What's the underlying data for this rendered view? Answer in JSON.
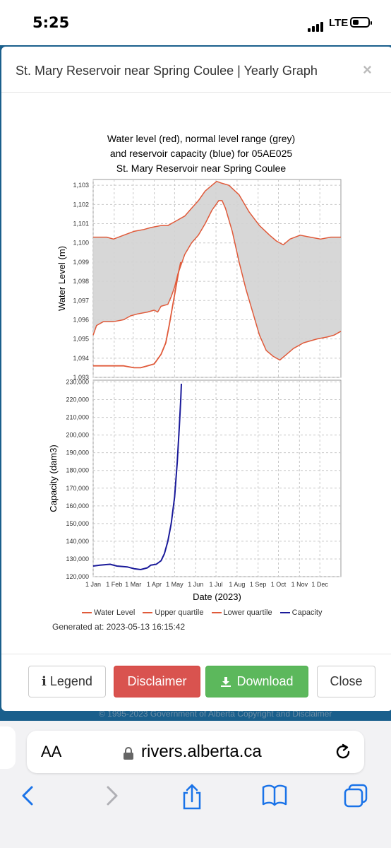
{
  "status_bar": {
    "time": "5:25",
    "network": "LTE"
  },
  "modal": {
    "title": "St. Mary Reservoir near Spring Coulee | Yearly Graph",
    "close_glyph": "×",
    "buttons": {
      "legend": "Legend",
      "disclaimer": "Disclaimer",
      "download": "Download",
      "close": "Close"
    }
  },
  "chart_data": {
    "type": "line",
    "title_lines": [
      "Water level (red), normal level range (grey)",
      "and reservoir capacity (blue) for 05AE025",
      "St. Mary Reservoir near Spring Coulee"
    ],
    "xlabel": "Date (2023)",
    "x_ticks": [
      "1 Jan",
      "1 Feb",
      "1 Mar",
      "1 Apr",
      "1 May",
      "1 Jun",
      "1 Jul",
      "1 Aug",
      "1 Sep",
      "1 Oct",
      "1 Nov",
      "1 Dec"
    ],
    "x_range_days": [
      0,
      365
    ],
    "top_panel": {
      "ylabel": "Water Level (m)",
      "ylim": [
        1093,
        1103.3
      ],
      "y_ticks": [
        "1,093",
        "1,094",
        "1,095",
        "1,096",
        "1,097",
        "1,098",
        "1,099",
        "1,100",
        "1,101",
        "1,102",
        "1,103"
      ],
      "upper_quartile": {
        "name": "Upper quartile",
        "points": [
          [
            0,
            1100.3
          ],
          [
            20,
            1100.3
          ],
          [
            30,
            1100.2
          ],
          [
            45,
            1100.4
          ],
          [
            60,
            1100.6
          ],
          [
            75,
            1100.7
          ],
          [
            85,
            1100.8
          ],
          [
            100,
            1100.9
          ],
          [
            110,
            1100.9
          ],
          [
            125,
            1101.2
          ],
          [
            135,
            1101.4
          ],
          [
            145,
            1101.8
          ],
          [
            155,
            1102.2
          ],
          [
            165,
            1102.7
          ],
          [
            175,
            1103.0
          ],
          [
            182,
            1103.2
          ],
          [
            190,
            1103.1
          ],
          [
            200,
            1103.0
          ],
          [
            215,
            1102.5
          ],
          [
            230,
            1101.6
          ],
          [
            245,
            1100.9
          ],
          [
            260,
            1100.4
          ],
          [
            270,
            1100.1
          ],
          [
            280,
            1099.9
          ],
          [
            290,
            1100.2
          ],
          [
            305,
            1100.4
          ],
          [
            320,
            1100.3
          ],
          [
            335,
            1100.2
          ],
          [
            350,
            1100.3
          ],
          [
            365,
            1100.3
          ]
        ]
      },
      "lower_quartile": {
        "name": "Lower quartile",
        "points": [
          [
            0,
            1095.2
          ],
          [
            5,
            1095.7
          ],
          [
            15,
            1095.9
          ],
          [
            30,
            1095.9
          ],
          [
            45,
            1096.0
          ],
          [
            55,
            1096.2
          ],
          [
            65,
            1096.3
          ],
          [
            80,
            1096.4
          ],
          [
            90,
            1096.5
          ],
          [
            95,
            1096.4
          ],
          [
            100,
            1096.7
          ],
          [
            110,
            1096.8
          ],
          [
            115,
            1097.2
          ],
          [
            120,
            1097.7
          ],
          [
            125,
            1098.4
          ],
          [
            135,
            1099.4
          ],
          [
            145,
            1100.0
          ],
          [
            155,
            1100.4
          ],
          [
            165,
            1101.0
          ],
          [
            175,
            1101.7
          ],
          [
            185,
            1102.2
          ],
          [
            190,
            1102.2
          ],
          [
            195,
            1101.8
          ],
          [
            205,
            1100.6
          ],
          [
            215,
            1099.0
          ],
          [
            225,
            1097.6
          ],
          [
            235,
            1096.4
          ],
          [
            245,
            1095.2
          ],
          [
            255,
            1094.4
          ],
          [
            265,
            1094.1
          ],
          [
            275,
            1093.9
          ],
          [
            285,
            1094.2
          ],
          [
            295,
            1094.5
          ],
          [
            310,
            1094.8
          ],
          [
            330,
            1095.0
          ],
          [
            345,
            1095.1
          ],
          [
            355,
            1095.2
          ],
          [
            365,
            1095.4
          ]
        ]
      },
      "water_level": {
        "name": "Water Level",
        "points": [
          [
            0,
            1093.6
          ],
          [
            15,
            1093.6
          ],
          [
            30,
            1093.6
          ],
          [
            45,
            1093.6
          ],
          [
            60,
            1093.5
          ],
          [
            70,
            1093.5
          ],
          [
            80,
            1093.6
          ],
          [
            90,
            1093.7
          ],
          [
            100,
            1094.2
          ],
          [
            107,
            1094.8
          ],
          [
            112,
            1095.7
          ],
          [
            117,
            1096.7
          ],
          [
            122,
            1097.7
          ],
          [
            126,
            1098.5
          ],
          [
            129,
            1099.0
          ]
        ]
      }
    },
    "bottom_panel": {
      "ylabel": "Capacity (dam3)",
      "ylim": [
        120000,
        231000
      ],
      "y_ticks": [
        "120,000",
        "130,000",
        "140,000",
        "150,000",
        "160,000",
        "170,000",
        "180,000",
        "190,000",
        "200,000",
        "210,000",
        "220,000",
        "230,000"
      ],
      "capacity": {
        "name": "Capacity",
        "points": [
          [
            0,
            126000
          ],
          [
            10,
            126500
          ],
          [
            25,
            127000
          ],
          [
            35,
            126000
          ],
          [
            50,
            125500
          ],
          [
            60,
            124500
          ],
          [
            70,
            124000
          ],
          [
            80,
            125000
          ],
          [
            85,
            126500
          ],
          [
            93,
            127000
          ],
          [
            100,
            129000
          ],
          [
            105,
            133000
          ],
          [
            110,
            140000
          ],
          [
            115,
            150000
          ],
          [
            120,
            165000
          ],
          [
            124,
            185000
          ],
          [
            127,
            205000
          ],
          [
            129,
            220000
          ],
          [
            130,
            229000
          ]
        ]
      }
    },
    "legend": [
      "Water Level",
      "Upper quartile",
      "Lower quartile",
      "Capacity"
    ],
    "generated_at": "Generated at: 2023-05-13 16:15:42",
    "colors": {
      "water": "#e05a3a",
      "quartile": "#e05a3a",
      "band": "#d3d3d3",
      "capacity": "#1a1a9a"
    }
  },
  "footer_text": "© 1995-2023 Government of Alberta Copyright and Disclaimer",
  "browser": {
    "text_size_label": "AA",
    "url": "rivers.alberta.ca"
  }
}
